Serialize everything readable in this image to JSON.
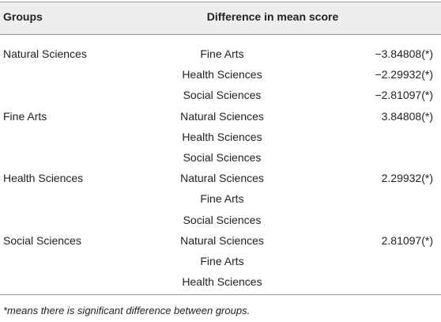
{
  "table": {
    "header": [
      "Groups",
      "Difference in mean score"
    ],
    "groups": [
      {
        "name": "Natural Sciences",
        "comparisons": [
          {
            "group": "Fine Arts",
            "difference": "−3.84808(*)"
          },
          {
            "group": "Health Sciences",
            "difference": "−2.29932(*)"
          },
          {
            "group": "Social Sciences",
            "difference": "−2.81097(*)"
          }
        ]
      },
      {
        "name": "Fine Arts",
        "comparisons": [
          {
            "group": "Natural Sciences",
            "difference": "3.84808(*)"
          },
          {
            "group": "Health Sciences"
          },
          {
            "group": "Social Sciences"
          }
        ]
      },
      {
        "name": "Health Sciences",
        "comparisons": [
          {
            "group": "Natural Sciences",
            "difference": "2.29932(*)"
          },
          {
            "group": "Fine Arts"
          },
          {
            "group": "Social Sciences"
          }
        ]
      },
      {
        "name": "Social Sciences",
        "comparisons": [
          {
            "group": "Natural Sciences",
            "difference": "2.81097(*)"
          },
          {
            "group": "Fine Arts"
          },
          {
            "group": "Health Sciences"
          }
        ]
      }
    ],
    "footnote": "*means there is significant difference between groups."
  }
}
